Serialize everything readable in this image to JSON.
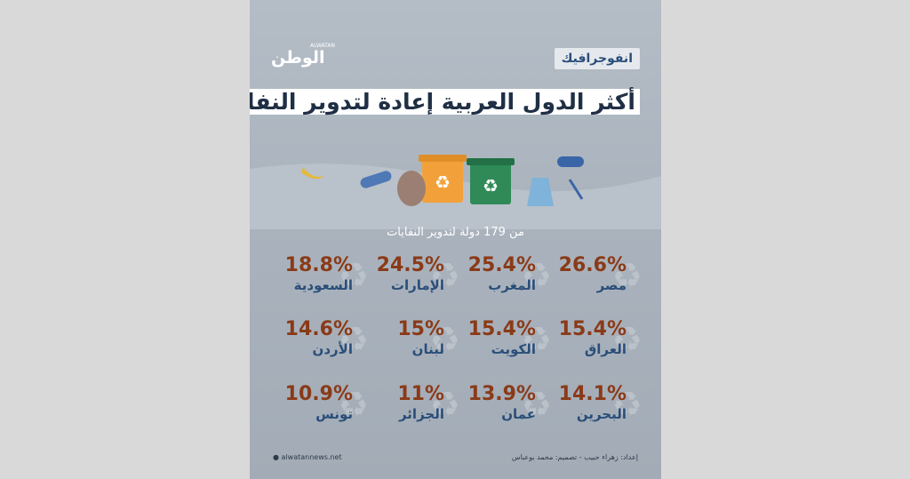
{
  "header": {
    "logo": "الوطن",
    "logo_small": "ALWATAN",
    "tag": "انفوجرافيك",
    "title": "أكثر الدول العربية إعادة لتدوير النفايات"
  },
  "subtitle": "من 179 دولة لتدوير النفايات",
  "footer": {
    "website": "alwatannews.net",
    "credits": "إعداد: زهراء حبيب - تصميم: محمد بوعباس"
  },
  "colors": {
    "value": "#8a3a18",
    "name": "#2a4e7a",
    "background": "#aab3bd"
  },
  "chart_data": {
    "type": "table",
    "unit": "%",
    "categories": [
      "مصر",
      "المغرب",
      "الإمارات",
      "السعودية",
      "العراق",
      "الكويت",
      "لبنان",
      "الأردن",
      "البحرين",
      "عمان",
      "الجزائر",
      "تونس"
    ],
    "values": [
      26.6,
      25.4,
      24.5,
      18.8,
      15.4,
      15.4,
      15,
      14.6,
      14.1,
      13.9,
      11,
      10.9
    ],
    "labels": [
      "26.6%",
      "25.4%",
      "24.5%",
      "18.8%",
      "15.4%",
      "15.4%",
      "15%",
      "14.6%",
      "14.1%",
      "13.9%",
      "11%",
      "10.9%"
    ]
  }
}
